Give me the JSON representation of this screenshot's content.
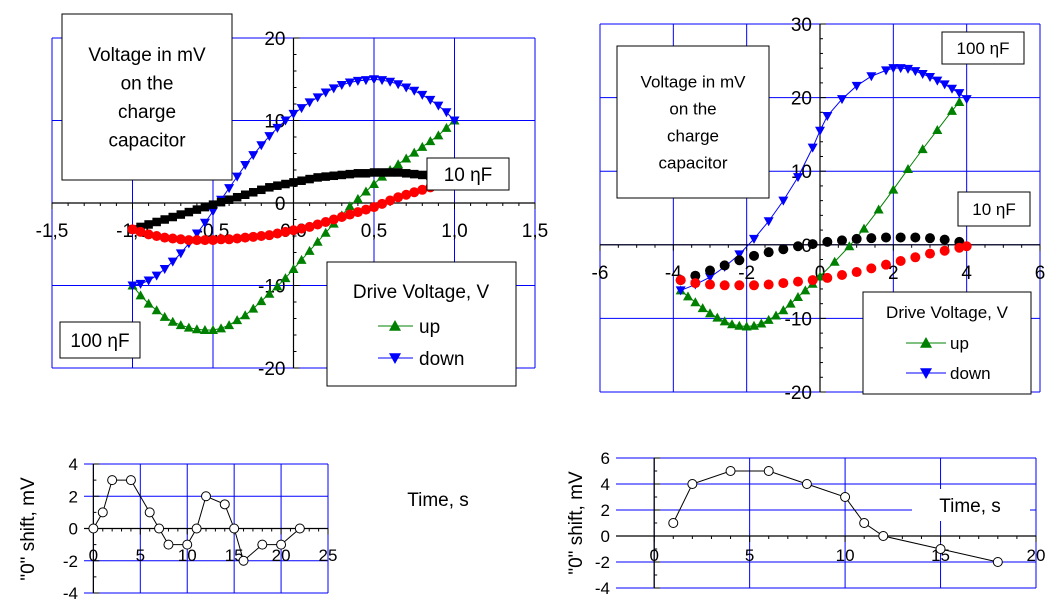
{
  "chart_data": [
    {
      "id": "top-left",
      "type": "scatter",
      "xlim": [
        -1.5,
        1.5
      ],
      "ylim": [
        -20,
        20
      ],
      "x_ticks": [
        "-1,5",
        "-1,0",
        "-0,5",
        "0,0",
        "0,5",
        "1,0",
        "1,5"
      ],
      "y_ticks": [
        "-20",
        "-10",
        "0",
        "10",
        "20"
      ],
      "grid": true,
      "annotations": {
        "ylabel_box": "Voltage in mV on the charge capacitor",
        "label_10nF": "10 ηF",
        "label_100nF": "100 ηF"
      },
      "legend": {
        "title": "Drive Voltage, V",
        "up": "up",
        "down": "down",
        "position": "bottom-right"
      },
      "colors": {
        "up": "#008000",
        "down": "#0000ff",
        "black": "#000000",
        "red": "#ff0000"
      },
      "series": [
        {
          "name": "up",
          "marker": "triangle-up",
          "x": [
            -1.0,
            -0.95,
            -0.9,
            -0.85,
            -0.8,
            -0.75,
            -0.7,
            -0.65,
            -0.6,
            -0.55,
            -0.5,
            -0.45,
            -0.4,
            -0.35,
            -0.3,
            -0.25,
            -0.2,
            -0.15,
            -0.1,
            -0.05,
            0.0,
            0.05,
            0.1,
            0.15,
            0.2,
            0.25,
            0.3,
            0.35,
            0.4,
            0.45,
            0.5,
            0.55,
            0.6,
            0.65,
            0.7,
            0.75,
            0.8,
            0.85,
            0.9,
            0.95,
            1.0
          ],
          "y": [
            -10,
            -11.2,
            -12.2,
            -13,
            -13.8,
            -14.4,
            -14.8,
            -15.1,
            -15.3,
            -15.4,
            -15.4,
            -15.2,
            -14.8,
            -14.2,
            -13.6,
            -12.8,
            -11.9,
            -11,
            -10.1,
            -9.1,
            -8,
            -6.9,
            -5.8,
            -4.7,
            -3.6,
            -2.5,
            -1.5,
            -0.4,
            0.5,
            1.4,
            2.3,
            3.2,
            4,
            4.7,
            5.4,
            6.1,
            6.8,
            7.5,
            8.2,
            9.1,
            10
          ]
        },
        {
          "name": "down",
          "marker": "triangle-down",
          "x": [
            -1.0,
            -0.95,
            -0.9,
            -0.85,
            -0.8,
            -0.75,
            -0.7,
            -0.65,
            -0.6,
            -0.55,
            -0.5,
            -0.45,
            -0.4,
            -0.35,
            -0.3,
            -0.25,
            -0.2,
            -0.15,
            -0.1,
            -0.05,
            0.0,
            0.05,
            0.1,
            0.15,
            0.2,
            0.25,
            0.3,
            0.35,
            0.4,
            0.45,
            0.5,
            0.55,
            0.6,
            0.65,
            0.7,
            0.75,
            0.8,
            0.85,
            0.9,
            0.95,
            1.0
          ],
          "y": [
            -10,
            -9.8,
            -9.4,
            -8.8,
            -8,
            -7.1,
            -6.1,
            -4.9,
            -3.7,
            -2.4,
            -1,
            0.4,
            1.8,
            3.2,
            4.6,
            5.8,
            7,
            8.1,
            9.1,
            10,
            10.8,
            11.5,
            12.2,
            12.8,
            13.4,
            13.9,
            14.3,
            14.6,
            14.8,
            14.9,
            15,
            14.9,
            14.7,
            14.4,
            14,
            13.6,
            13.1,
            12.5,
            11.8,
            11,
            10
          ]
        },
        {
          "name": "10 ηF (black)",
          "marker": "square",
          "x": [
            -1.0,
            -0.95,
            -0.9,
            -0.85,
            -0.8,
            -0.75,
            -0.7,
            -0.65,
            -0.6,
            -0.55,
            -0.5,
            -0.45,
            -0.4,
            -0.35,
            -0.3,
            -0.25,
            -0.2,
            -0.15,
            -0.1,
            -0.05,
            0.0,
            0.05,
            0.1,
            0.15,
            0.2,
            0.25,
            0.3,
            0.35,
            0.4,
            0.45,
            0.5,
            0.55,
            0.6,
            0.65,
            0.7,
            0.75,
            0.8,
            0.85,
            0.9,
            0.95,
            1.0
          ],
          "y": [
            -3.2,
            -2.9,
            -2.6,
            -2.3,
            -2,
            -1.7,
            -1.4,
            -1.1,
            -0.8,
            -0.5,
            -0.2,
            0.1,
            0.4,
            0.7,
            1,
            1.3,
            1.6,
            1.9,
            2.1,
            2.3,
            2.5,
            2.7,
            2.9,
            3.1,
            3.2,
            3.3,
            3.4,
            3.5,
            3.6,
            3.6,
            3.7,
            3.7,
            3.7,
            3.7,
            3.6,
            3.5,
            3.4,
            3.3,
            3.1,
            2.9,
            2.7
          ]
        },
        {
          "name": "10 ηF (red)",
          "marker": "circle",
          "x": [
            -1.0,
            -0.95,
            -0.9,
            -0.85,
            -0.8,
            -0.75,
            -0.7,
            -0.65,
            -0.6,
            -0.55,
            -0.5,
            -0.45,
            -0.4,
            -0.35,
            -0.3,
            -0.25,
            -0.2,
            -0.15,
            -0.1,
            -0.05,
            0.0,
            0.05,
            0.1,
            0.15,
            0.2,
            0.25,
            0.3,
            0.35,
            0.4,
            0.45,
            0.5,
            0.55,
            0.6,
            0.65,
            0.7,
            0.75,
            0.8,
            0.85,
            0.9,
            0.95,
            1.0
          ],
          "y": [
            -3.2,
            -3.5,
            -3.8,
            -4,
            -4.2,
            -4.3,
            -4.4,
            -4.5,
            -4.5,
            -4.5,
            -4.5,
            -4.4,
            -4.4,
            -4.3,
            -4.2,
            -4.1,
            -4,
            -3.9,
            -3.7,
            -3.5,
            -3.3,
            -3.1,
            -2.9,
            -2.6,
            -2.3,
            -2,
            -1.7,
            -1.4,
            -1.1,
            -0.8,
            -0.5,
            -0.1,
            0.3,
            0.7,
            1,
            1.3,
            1.6,
            1.9,
            2.2,
            2.5,
            2.7
          ]
        }
      ]
    },
    {
      "id": "top-right",
      "type": "scatter",
      "xlim": [
        -6,
        6
      ],
      "ylim": [
        -20,
        30
      ],
      "x_ticks": [
        "-6",
        "-4",
        "-2",
        "0",
        "2",
        "4",
        "6"
      ],
      "y_ticks": [
        "-20",
        "-10",
        "0",
        "10",
        "20",
        "30"
      ],
      "grid": true,
      "annotations": {
        "ylabel_box": "Voltage in mV on the charge capacitor",
        "label_100nF": "100 ηF",
        "label_10nF": "10 ηF"
      },
      "legend": {
        "title": "Drive Voltage, V",
        "up": "up",
        "down": "down",
        "position": "bottom-right"
      },
      "colors": {
        "up": "#008000",
        "down": "#0000ff",
        "black": "#000000",
        "red": "#ff0000"
      },
      "series": [
        {
          "name": "up",
          "marker": "triangle-up",
          "x": [
            -3.8,
            -3.6,
            -3.4,
            -3.2,
            -3.0,
            -2.8,
            -2.6,
            -2.4,
            -2.2,
            -2.0,
            -1.8,
            -1.6,
            -1.4,
            -1.2,
            -1.0,
            -0.8,
            -0.6,
            -0.4,
            -0.2,
            0.0,
            0.4,
            0.8,
            1.2,
            1.6,
            2.0,
            2.4,
            2.8,
            3.2,
            3.6,
            3.8
          ],
          "y": [
            -6.2,
            -7,
            -7.8,
            -8.6,
            -9.3,
            -9.9,
            -10.4,
            -10.8,
            -11,
            -11.1,
            -11,
            -10.7,
            -10.2,
            -9.6,
            -8.9,
            -8,
            -7.1,
            -6.2,
            -5.3,
            -4.3,
            -2.3,
            -0.2,
            2.2,
            4.8,
            7.5,
            10.3,
            13,
            15.6,
            18.2,
            19.4
          ]
        },
        {
          "name": "down",
          "marker": "triangle-down",
          "x": [
            -3.8,
            -3.4,
            -3.0,
            -2.6,
            -2.2,
            -1.8,
            -1.4,
            -1.0,
            -0.6,
            -0.2,
            0.0,
            0.2,
            0.6,
            1.0,
            1.4,
            1.8,
            2.0,
            2.2,
            2.4,
            2.6,
            2.8,
            3.0,
            3.2,
            3.4,
            3.6,
            3.8,
            4.0
          ],
          "y": [
            -6.2,
            -5.4,
            -4.4,
            -3,
            -1.3,
            0.8,
            3.2,
            6,
            9.2,
            13.2,
            15.5,
            17.5,
            19.8,
            21.6,
            22.9,
            23.7,
            24,
            24,
            23.9,
            23.6,
            23.2,
            22.8,
            22.3,
            21.8,
            21.2,
            20.6,
            19.8
          ]
        },
        {
          "name": "10 ηF (black)",
          "marker": "circle",
          "x": [
            -3.8,
            -3.4,
            -3.0,
            -2.6,
            -2.2,
            -1.8,
            -1.4,
            -1.0,
            -0.6,
            -0.2,
            0.2,
            0.6,
            1.0,
            1.4,
            1.8,
            2.2,
            2.6,
            3.0,
            3.4,
            3.8
          ],
          "y": [
            -4.8,
            -4.2,
            -3.5,
            -2.8,
            -2.1,
            -1.5,
            -1,
            -0.6,
            -0.2,
            0.1,
            0.4,
            0.6,
            0.8,
            0.9,
            1,
            1,
            1,
            0.9,
            0.7,
            0.4
          ]
        },
        {
          "name": "10 ηF (red)",
          "marker": "circle",
          "x": [
            -3.8,
            -3.4,
            -3.0,
            -2.6,
            -2.2,
            -1.8,
            -1.4,
            -1.0,
            -0.6,
            -0.2,
            0.2,
            0.6,
            1.0,
            1.4,
            1.8,
            2.2,
            2.6,
            3.0,
            3.4,
            3.8,
            4.0
          ],
          "y": [
            -4.8,
            -5.2,
            -5.4,
            -5.5,
            -5.5,
            -5.5,
            -5.4,
            -5.2,
            -5,
            -4.8,
            -4.5,
            -4.1,
            -3.7,
            -3.2,
            -2.7,
            -2.2,
            -1.7,
            -1.2,
            -0.8,
            -0.4,
            -0.2
          ]
        }
      ]
    },
    {
      "id": "bottom-left",
      "type": "line",
      "xlim": [
        -1,
        25
      ],
      "ylim": [
        -4,
        4
      ],
      "x_ticks": [
        "0",
        "5",
        "10",
        "15",
        "20",
        "25"
      ],
      "y_ticks": [
        "-4",
        "-2",
        "0",
        "2",
        "4"
      ],
      "ylabel": "\"0\" shift, mV",
      "xlabel": "Time, s",
      "grid": true,
      "series": [
        {
          "name": "",
          "marker": "open-circle",
          "x": [
            0,
            1,
            2,
            4,
            6,
            7,
            8,
            10,
            11,
            12,
            14,
            15,
            16,
            18,
            20,
            22
          ],
          "y": [
            0,
            1,
            3,
            3,
            1,
            0,
            -1,
            -1,
            0,
            2,
            1.5,
            0,
            -2,
            -1,
            -1,
            0
          ]
        }
      ]
    },
    {
      "id": "bottom-right",
      "type": "line",
      "xlim": [
        -2,
        20
      ],
      "ylim": [
        -4,
        6
      ],
      "x_ticks": [
        "0",
        "5",
        "10",
        "15",
        "20"
      ],
      "y_ticks": [
        "-4",
        "-2",
        "0",
        "2",
        "4",
        "6"
      ],
      "ylabel": "\"0\" shift, mV",
      "xlabel": "Time, s",
      "grid": true,
      "series": [
        {
          "name": "",
          "marker": "open-circle",
          "x": [
            1,
            2,
            4,
            6,
            8,
            10,
            11,
            12,
            15,
            18
          ],
          "y": [
            1,
            4,
            5,
            5,
            4,
            3,
            1,
            0,
            -1,
            -2
          ]
        }
      ]
    }
  ]
}
